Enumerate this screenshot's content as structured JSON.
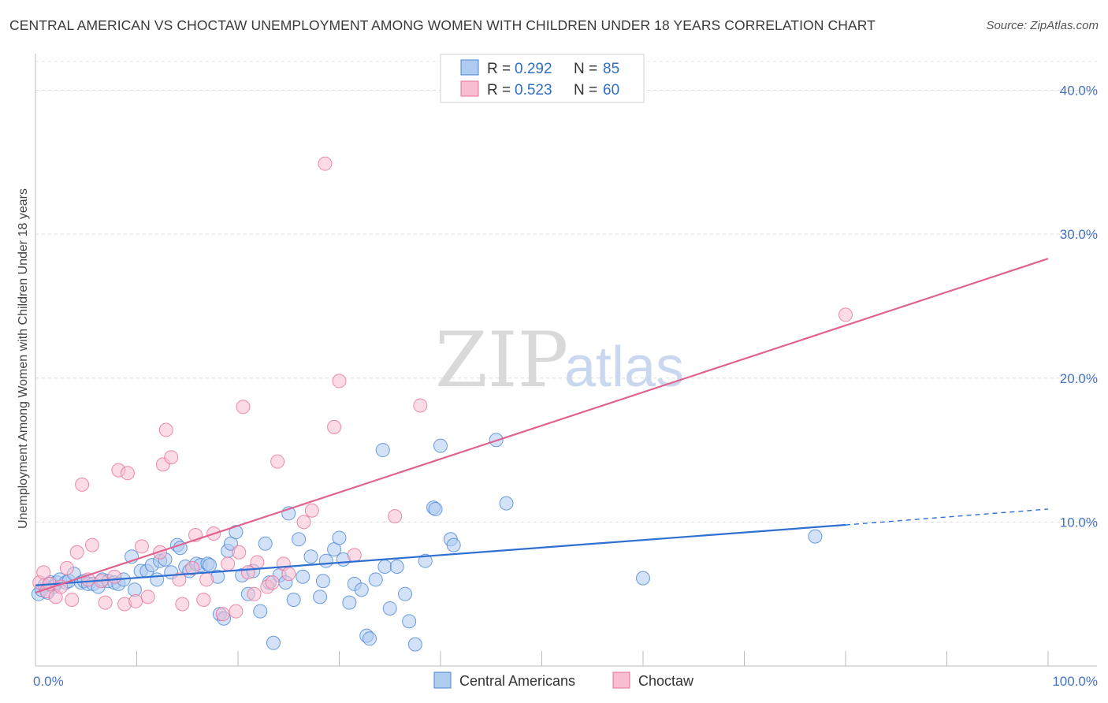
{
  "title": "CENTRAL AMERICAN VS CHOCTAW UNEMPLOYMENT AMONG WOMEN WITH CHILDREN UNDER 18 YEARS CORRELATION CHART",
  "source": "Source: ZipAtlas.com",
  "watermark": {
    "zip": "ZIP",
    "atlas": "atlas"
  },
  "colors": {
    "blue": "#4a86d8",
    "blue_fill": "#aecbf0",
    "pink": "#e8709a",
    "pink_fill": "#f7bdd0",
    "tick": "#4472c4"
  },
  "legend": {
    "rows": [
      {
        "r_label": "R =",
        "r_value": "0.292",
        "n_label": "N =",
        "n_value": "85"
      },
      {
        "r_label": "R =",
        "r_value": "0.523",
        "n_label": "N =",
        "n_value": "60"
      }
    ]
  },
  "bottom_legend": [
    "Central Americans",
    "Choctaw"
  ],
  "chart_data": {
    "type": "scatter",
    "title": "CENTRAL AMERICAN VS CHOCTAW UNEMPLOYMENT AMONG WOMEN WITH CHILDREN UNDER 18 YEARS CORRELATION CHART",
    "xlabel": "",
    "ylabel": "Unemployment Among Women with Children Under 18 years",
    "xlim": [
      0,
      100
    ],
    "ylim": [
      0,
      42
    ],
    "x_tick_labels": [
      "0.0%",
      "100.0%"
    ],
    "y_ticks": [
      10,
      20,
      30,
      40
    ],
    "y_tick_labels": [
      "10.0%",
      "20.0%",
      "30.0%",
      "40.0%"
    ],
    "series": [
      {
        "name": "Central Americans",
        "R": 0.292,
        "N": 85,
        "trend": {
          "x0": 0,
          "y0": 5.6,
          "x1": 80,
          "y1": 9.8,
          "dash_to_x": 100,
          "dash_to_y": 10.9
        },
        "points": [
          [
            0.3,
            5
          ],
          [
            0.6,
            5.3
          ],
          [
            0.9,
            5.6
          ],
          [
            1.2,
            5.1
          ],
          [
            1.5,
            5.8
          ],
          [
            1.8,
            5.5
          ],
          [
            2.1,
            5.8
          ],
          [
            2.4,
            6.0
          ],
          [
            3,
            5.8
          ],
          [
            3.3,
            5.9
          ],
          [
            3.8,
            6.4
          ],
          [
            4.5,
            5.8
          ],
          [
            4.8,
            5.9
          ],
          [
            5.2,
            5.7
          ],
          [
            5.7,
            5.7
          ],
          [
            6.2,
            5.5
          ],
          [
            6.6,
            6.0
          ],
          [
            7.2,
            5.9
          ],
          [
            7.8,
            5.8
          ],
          [
            8.2,
            5.7
          ],
          [
            8.7,
            6.0
          ],
          [
            9.5,
            7.6
          ],
          [
            9.8,
            5.3
          ],
          [
            10.4,
            6.6
          ],
          [
            11,
            6.6
          ],
          [
            11.5,
            7.0
          ],
          [
            12,
            6.0
          ],
          [
            12.3,
            7.3
          ],
          [
            12.8,
            7.4
          ],
          [
            13.4,
            6.5
          ],
          [
            14,
            8.4
          ],
          [
            14.3,
            8.2
          ],
          [
            14.8,
            6.9
          ],
          [
            15.2,
            6.6
          ],
          [
            15.9,
            7.1
          ],
          [
            16.3,
            7.0
          ],
          [
            17,
            7.1
          ],
          [
            17.2,
            7.0
          ],
          [
            18,
            6.2
          ],
          [
            18.2,
            3.6
          ],
          [
            18.6,
            3.3
          ],
          [
            19,
            8.0
          ],
          [
            19.3,
            8.5
          ],
          [
            19.8,
            9.3
          ],
          [
            20.4,
            6.3
          ],
          [
            21,
            5.0
          ],
          [
            21.5,
            6.6
          ],
          [
            22.2,
            3.8
          ],
          [
            22.7,
            8.5
          ],
          [
            23.1,
            5.8
          ],
          [
            23.5,
            1.6
          ],
          [
            24.1,
            6.3
          ],
          [
            24.7,
            5.8
          ],
          [
            25,
            10.6
          ],
          [
            25.5,
            4.6
          ],
          [
            26,
            8.8
          ],
          [
            26.4,
            6.2
          ],
          [
            27.2,
            7.6
          ],
          [
            28.1,
            4.8
          ],
          [
            28.4,
            5.9
          ],
          [
            28.7,
            7.3
          ],
          [
            29.5,
            8.1
          ],
          [
            30,
            8.9
          ],
          [
            30.4,
            7.4
          ],
          [
            31,
            4.4
          ],
          [
            31.5,
            5.7
          ],
          [
            32.2,
            5.3
          ],
          [
            32.7,
            2.1
          ],
          [
            33,
            1.9
          ],
          [
            33.6,
            6.0
          ],
          [
            34.3,
            15.0
          ],
          [
            34.5,
            6.9
          ],
          [
            35,
            4.0
          ],
          [
            35.7,
            6.9
          ],
          [
            36.5,
            5.0
          ],
          [
            36.9,
            3.1
          ],
          [
            37.5,
            1.5
          ],
          [
            38.5,
            7.3
          ],
          [
            39.3,
            11.0
          ],
          [
            39.5,
            10.9
          ],
          [
            40,
            15.3
          ],
          [
            41,
            8.8
          ],
          [
            41.3,
            8.4
          ],
          [
            45.5,
            15.7
          ],
          [
            46.5,
            11.3
          ],
          [
            60,
            6.1
          ],
          [
            77,
            9.0
          ]
        ]
      },
      {
        "name": "Choctaw",
        "R": 0.523,
        "N": 60,
        "trend": {
          "x0": 0,
          "y0": 5.1,
          "x1": 100,
          "y1": 28.3
        },
        "points": [
          [
            0.4,
            5.8
          ],
          [
            0.8,
            6.5
          ],
          [
            1.1,
            5.2
          ],
          [
            1.4,
            5.7
          ],
          [
            2,
            4.8
          ],
          [
            2.5,
            5.5
          ],
          [
            3.1,
            6.8
          ],
          [
            3.6,
            4.6
          ],
          [
            4.1,
            7.9
          ],
          [
            4.6,
            12.6
          ],
          [
            5.2,
            6.0
          ],
          [
            5.6,
            8.4
          ],
          [
            6.5,
            5.9
          ],
          [
            6.9,
            4.4
          ],
          [
            7.8,
            6.2
          ],
          [
            8.2,
            13.6
          ],
          [
            8.8,
            4.3
          ],
          [
            9.1,
            13.4
          ],
          [
            9.9,
            4.5
          ],
          [
            10.5,
            8.3
          ],
          [
            11.1,
            4.8
          ],
          [
            12.3,
            7.9
          ],
          [
            12.6,
            14.0
          ],
          [
            12.9,
            16.4
          ],
          [
            13.4,
            14.5
          ],
          [
            14.2,
            6.0
          ],
          [
            14.5,
            4.3
          ],
          [
            15.5,
            6.8
          ],
          [
            15.8,
            9.1
          ],
          [
            16.6,
            4.6
          ],
          [
            16.9,
            6.0
          ],
          [
            17.6,
            9.2
          ],
          [
            18.5,
            3.6
          ],
          [
            19,
            7.1
          ],
          [
            19.8,
            3.8
          ],
          [
            20.1,
            7.9
          ],
          [
            20.5,
            18.0
          ],
          [
            21,
            6.5
          ],
          [
            21.6,
            5.0
          ],
          [
            21.9,
            7.2
          ],
          [
            22.9,
            5.5
          ],
          [
            23.4,
            5.8
          ],
          [
            23.9,
            14.2
          ],
          [
            24.5,
            7.1
          ],
          [
            25,
            6.4
          ],
          [
            26.5,
            10.0
          ],
          [
            27.3,
            10.8
          ],
          [
            28.6,
            34.9
          ],
          [
            29.5,
            16.6
          ],
          [
            30,
            19.8
          ],
          [
            31.5,
            7.7
          ],
          [
            35.5,
            10.4
          ],
          [
            38,
            18.1
          ],
          [
            80,
            24.4
          ]
        ]
      }
    ]
  }
}
